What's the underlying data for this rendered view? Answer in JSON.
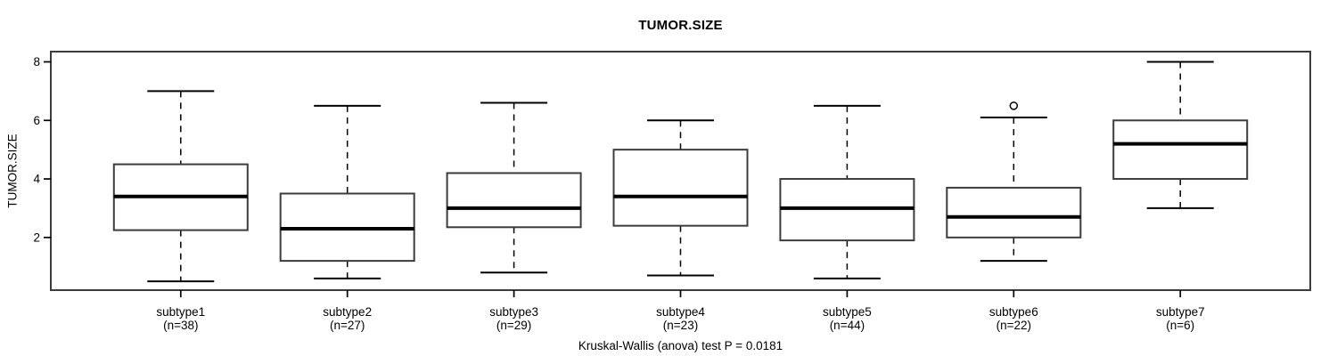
{
  "chart_data": {
    "type": "boxplot",
    "title": "TUMOR.SIZE",
    "ylabel": "TUMOR.SIZE",
    "footnote": "Kruskal-Wallis (anova) test P = 0.0181",
    "yticks": [
      2,
      4,
      6,
      8
    ],
    "ylim": [
      0.2,
      8.35
    ],
    "grid": false,
    "categories": [
      "subtype1",
      "subtype2",
      "subtype3",
      "subtype4",
      "subtype5",
      "subtype6",
      "subtype7"
    ],
    "counts": [
      "(n=38)",
      "(n=27)",
      "(n=29)",
      "(n=23)",
      "(n=44)",
      "(n=22)",
      "(n=6)"
    ],
    "series": [
      {
        "name": "subtype1",
        "n": 38,
        "whisker_low": 0.5,
        "q1": 2.25,
        "median": 3.4,
        "q3": 4.5,
        "whisker_high": 7.0,
        "outliers": []
      },
      {
        "name": "subtype2",
        "n": 27,
        "whisker_low": 0.6,
        "q1": 1.2,
        "median": 2.3,
        "q3": 3.5,
        "whisker_high": 6.5,
        "outliers": []
      },
      {
        "name": "subtype3",
        "n": 29,
        "whisker_low": 0.8,
        "q1": 2.35,
        "median": 3.0,
        "q3": 4.2,
        "whisker_high": 6.6,
        "outliers": []
      },
      {
        "name": "subtype4",
        "n": 23,
        "whisker_low": 0.7,
        "q1": 2.4,
        "median": 3.4,
        "q3": 5.0,
        "whisker_high": 6.0,
        "outliers": []
      },
      {
        "name": "subtype5",
        "n": 44,
        "whisker_low": 0.6,
        "q1": 1.9,
        "median": 3.0,
        "q3": 4.0,
        "whisker_high": 6.5,
        "outliers": []
      },
      {
        "name": "subtype6",
        "n": 22,
        "whisker_low": 1.2,
        "q1": 2.0,
        "median": 2.7,
        "q3": 3.7,
        "whisker_high": 6.1,
        "outliers": [
          6.5
        ]
      },
      {
        "name": "subtype7",
        "n": 6,
        "whisker_low": 3.0,
        "q1": 4.0,
        "median": 5.2,
        "q3": 6.0,
        "whisker_high": 8.0,
        "outliers": []
      }
    ],
    "colors": {
      "line": "#000000",
      "frame": "#3c3c3c",
      "box_stroke": "#3c3c3c",
      "box_fill": "#ffffff",
      "median": "#000000",
      "background": "#ffffff"
    }
  }
}
